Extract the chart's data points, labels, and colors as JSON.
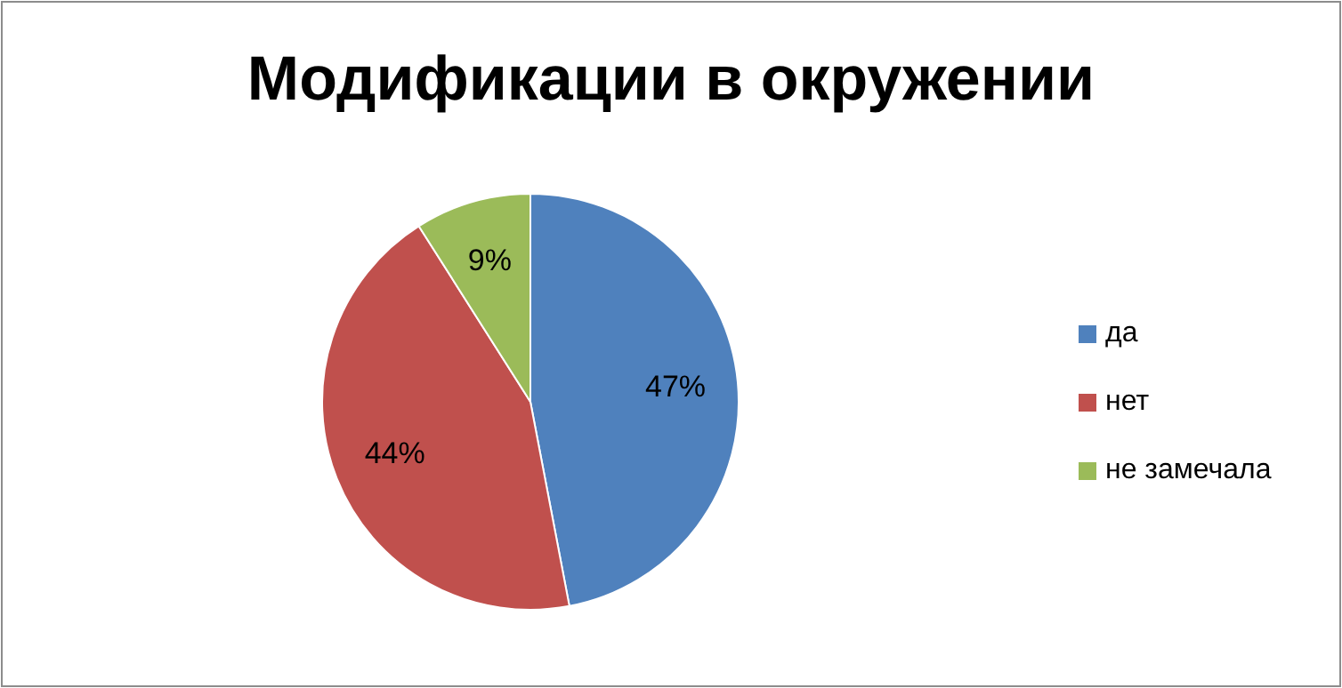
{
  "chart_data": {
    "type": "pie",
    "title": "Модификации в окружении",
    "categories": [
      "да",
      "нет",
      "не замечала"
    ],
    "values": [
      47,
      44,
      9
    ],
    "colors": [
      "#4f81bd",
      "#c0504d",
      "#9bbb59"
    ],
    "value_labels": [
      "47%",
      "44%",
      "9%"
    ],
    "legend": "right"
  }
}
